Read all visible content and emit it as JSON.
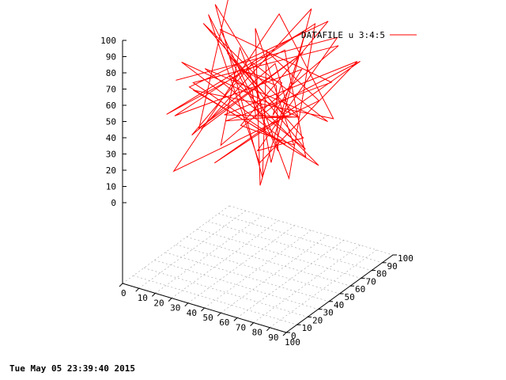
{
  "timestamp": "Tue May 05 23:39:40 2015",
  "colors": {
    "series": "#ff0000",
    "axis": "#000000",
    "grid": "#a0a0a0"
  },
  "chart_data": {
    "type": "line",
    "dimension": "3d",
    "legend": {
      "label": "DATAFILE u 3:4:5",
      "placement": "top-right"
    },
    "series": [
      {
        "name": "DATAFILE u 3:4:5"
      }
    ],
    "x_ticks": [
      "0",
      "10",
      "20",
      "30",
      "40",
      "50",
      "60",
      "70",
      "80",
      "90",
      "100"
    ],
    "y_ticks": [
      "0",
      "10",
      "20",
      "30",
      "40",
      "50",
      "60",
      "70",
      "80",
      "90",
      "100"
    ],
    "z_ticks": [
      "0",
      "10",
      "20",
      "30",
      "40",
      "50",
      "60",
      "70",
      "80",
      "90",
      "100"
    ],
    "xlim": [
      0,
      100
    ],
    "ylim": [
      0,
      100
    ],
    "zlim": [
      0,
      100
    ],
    "grid": "base grid on",
    "note_points": "Random 3D polyline; values estimated",
    "points": [
      [
        12,
        84,
        99
      ],
      [
        35,
        18,
        48
      ],
      [
        70,
        62,
        84
      ],
      [
        22,
        40,
        33
      ],
      [
        58,
        88,
        95
      ],
      [
        81,
        15,
        42
      ],
      [
        44,
        55,
        71
      ],
      [
        9,
        73,
        90
      ],
      [
        66,
        30,
        21
      ],
      [
        28,
        92,
        58
      ],
      [
        90,
        46,
        68
      ],
      [
        15,
        25,
        12
      ],
      [
        52,
        67,
        100
      ],
      [
        76,
        81,
        36
      ],
      [
        38,
        8,
        77
      ],
      [
        61,
        59,
        26
      ],
      [
        19,
        37,
        62
      ],
      [
        85,
        72,
        88
      ],
      [
        47,
        20,
        40
      ],
      [
        30,
        64,
        74
      ],
      [
        73,
        44,
        16
      ],
      [
        55,
        96,
        81
      ],
      [
        24,
        12,
        55
      ],
      [
        88,
        33,
        93
      ],
      [
        41,
        78,
        29
      ],
      [
        64,
        51,
        69
      ],
      [
        17,
        85,
        46
      ],
      [
        79,
        23,
        85
      ],
      [
        50,
        69,
        14
      ],
      [
        33,
        41,
        97
      ],
      [
        69,
        90,
        52
      ],
      [
        26,
        57,
        31
      ],
      [
        92,
        16,
        74
      ],
      [
        45,
        74,
        64
      ],
      [
        11,
        48,
        22
      ],
      [
        60,
        30,
        90
      ],
      [
        83,
        65,
        44
      ],
      [
        36,
        22,
        83
      ],
      [
        57,
        84,
        10
      ],
      [
        21,
        66,
        67
      ],
      [
        74,
        39,
        57
      ],
      [
        49,
        11,
        34
      ],
      [
        95,
        77,
        79
      ],
      [
        31,
        95,
        24
      ],
      [
        67,
        26,
        61
      ],
      [
        14,
        59,
        92
      ],
      [
        53,
        47,
        18
      ],
      [
        86,
        88,
        71
      ],
      [
        40,
        34,
        50
      ],
      [
        62,
        70,
        38
      ],
      [
        25,
        17,
        86
      ],
      [
        78,
        52,
        27
      ],
      [
        43,
        86,
        66
      ],
      [
        8,
        29,
        43
      ],
      [
        71,
        63,
        98
      ],
      [
        56,
        43,
        7
      ],
      [
        29,
        80,
        78
      ],
      [
        91,
        21,
        53
      ],
      [
        37,
        54,
        33
      ],
      [
        65,
        93,
        87
      ],
      [
        18,
        35,
        60
      ],
      [
        82,
        58,
        20
      ],
      [
        48,
        27,
        80
      ],
      [
        33,
        71,
        45
      ],
      [
        75,
        10,
        70
      ],
      [
        54,
        82,
        30
      ],
      [
        20,
        45,
        95
      ],
      [
        87,
        36,
        49
      ],
      [
        42,
        62,
        15
      ],
      [
        68,
        97,
        76
      ],
      [
        13,
        30,
        65
      ]
    ]
  }
}
